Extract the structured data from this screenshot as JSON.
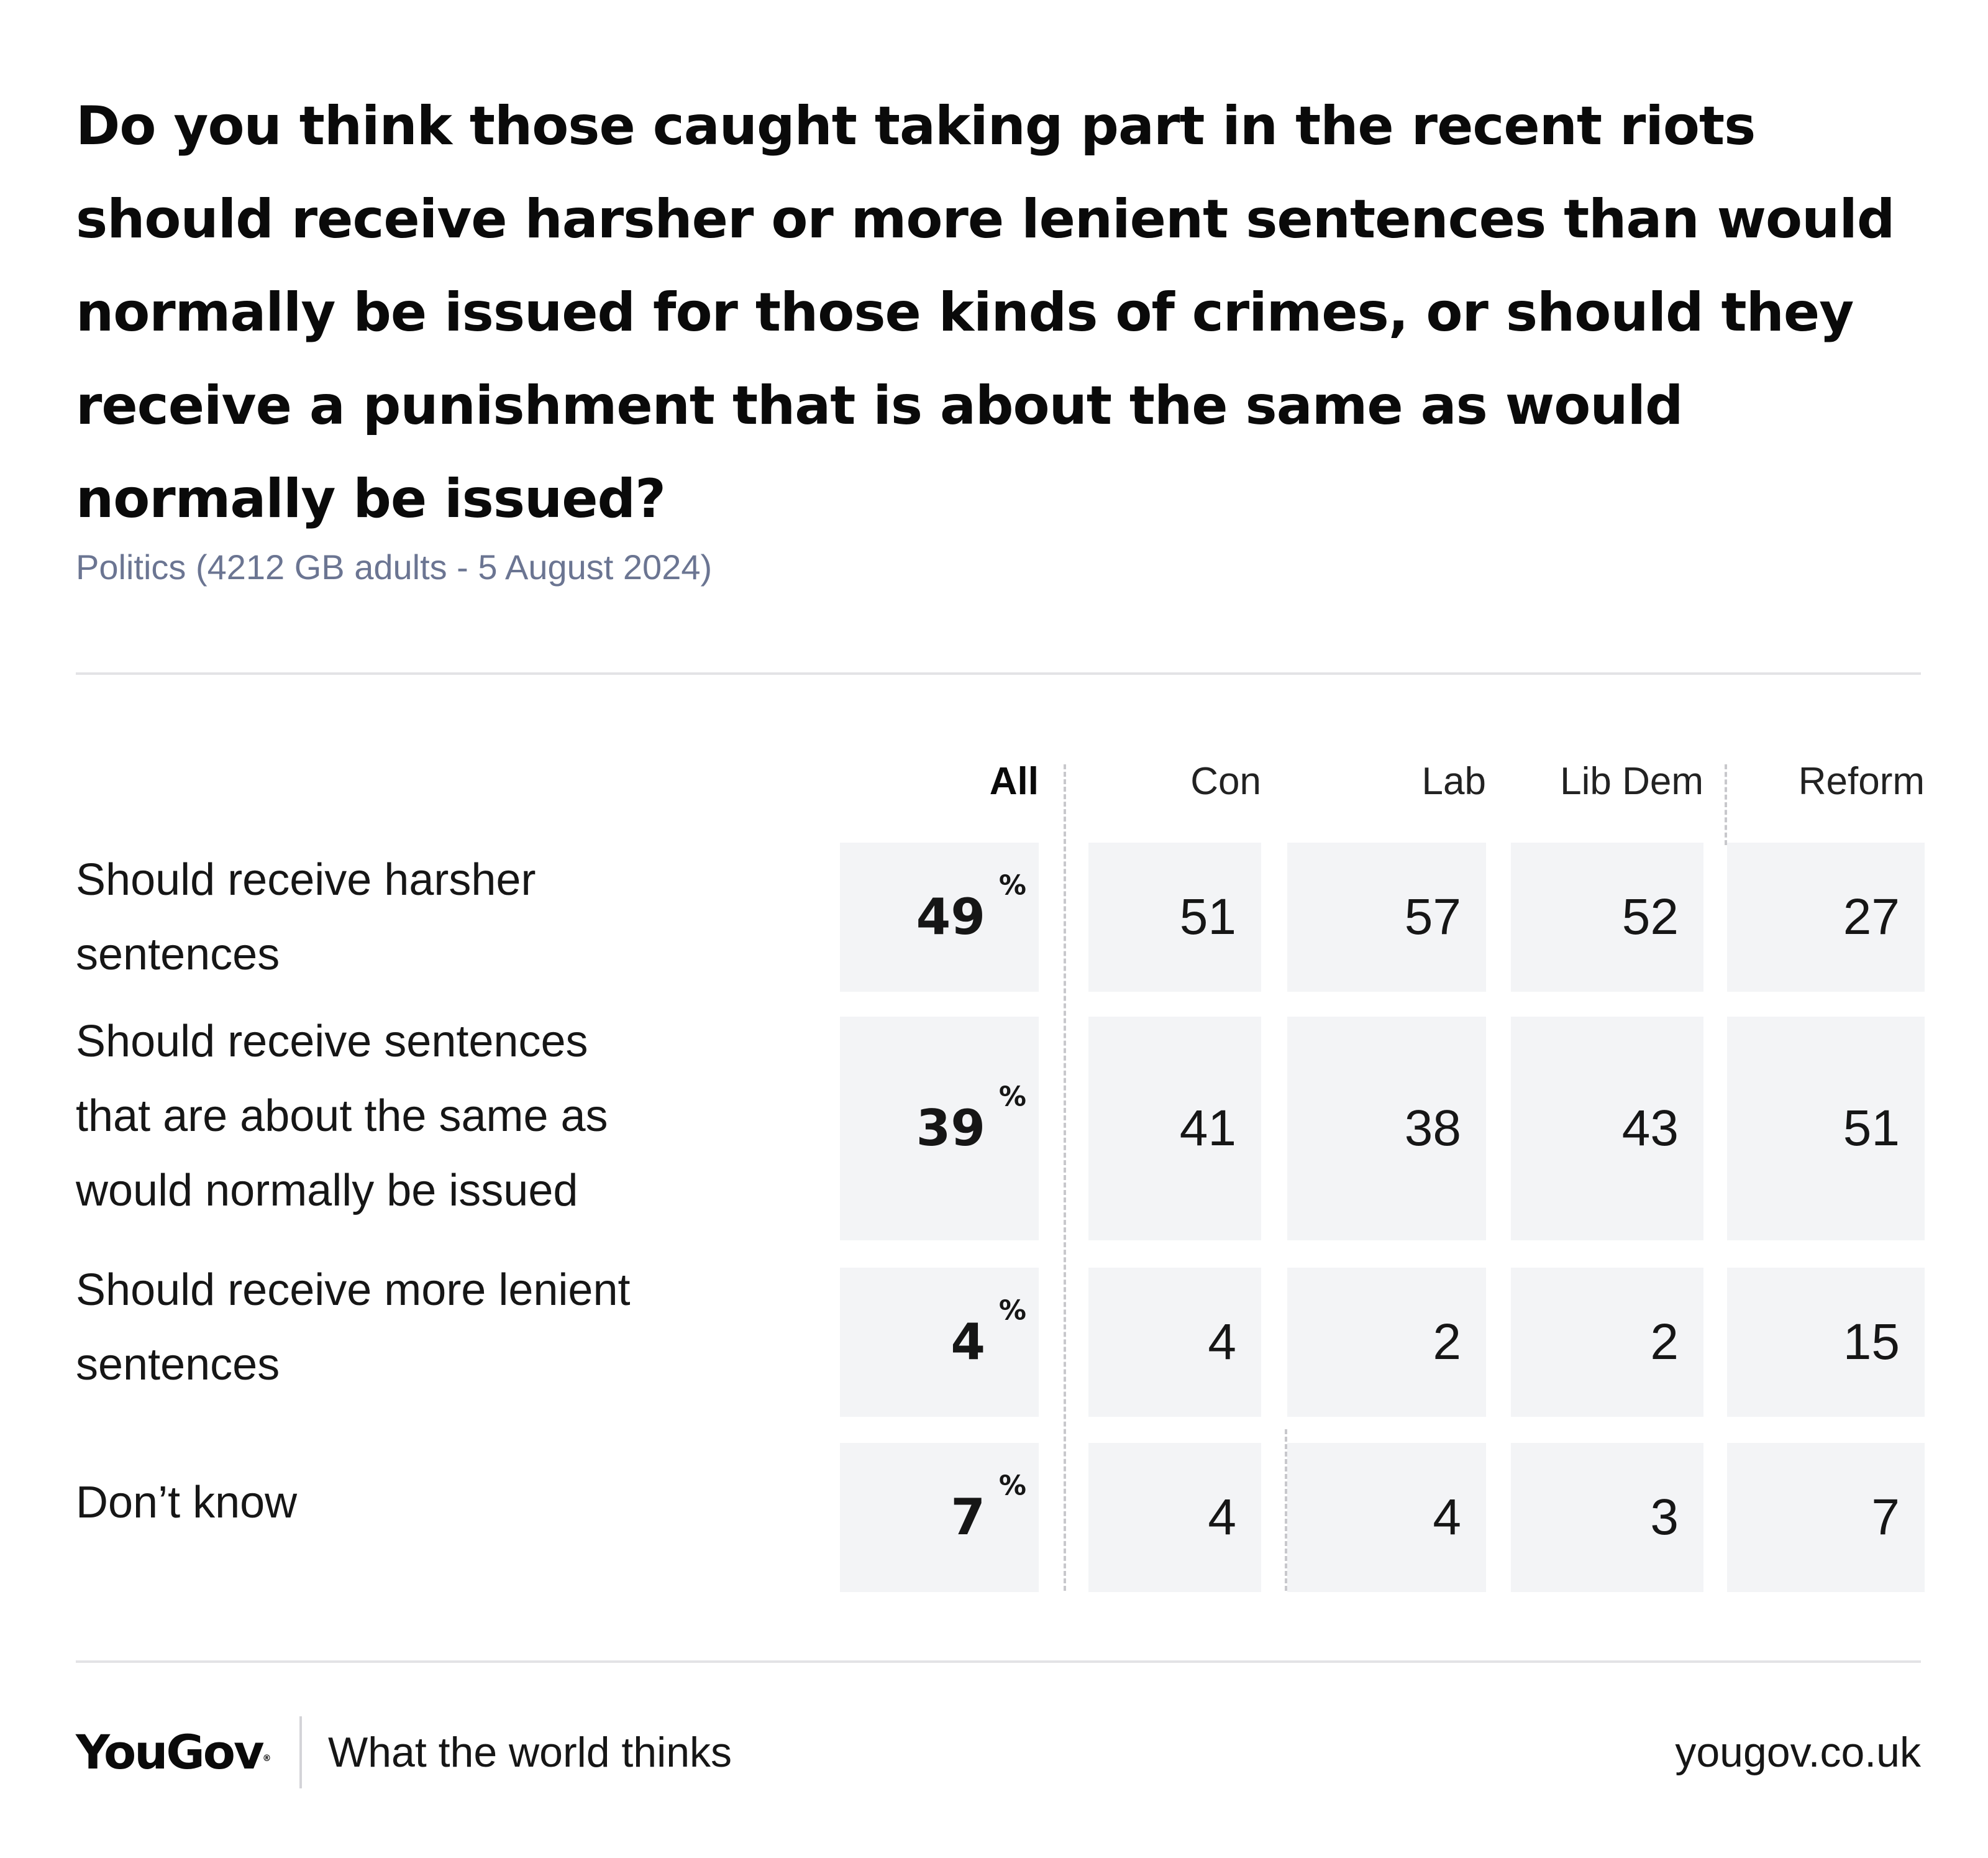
{
  "title": "Do you think those caught taking part in the recent riots should receive harsher or more lenient sentences than would normally be issued for those kinds of crimes, or should they receive a punishment that is about the same as would normally be issued?",
  "subtitle": "Politics (4212 GB adults - 5 August 2024)",
  "footer": {
    "logo": "YouGov",
    "tagline": "What the world thinks",
    "url": "yougov.co.uk"
  },
  "colors": {
    "cell_background": "#f3f4f6",
    "subtitle": "#6b7592",
    "rule": "#e3e3e6"
  },
  "chart_data": {
    "type": "table",
    "unit": "%",
    "columns": [
      "All",
      "Con",
      "Lab",
      "Lib Dem",
      "Reform"
    ],
    "rows": [
      {
        "label": "Should receive harsher sentences",
        "values": [
          49,
          51,
          57,
          52,
          27
        ]
      },
      {
        "label": "Should receive sentences that are about the same as would normally be issued",
        "values": [
          39,
          41,
          38,
          43,
          51
        ]
      },
      {
        "label": "Should receive more lenient sentences",
        "values": [
          4,
          4,
          2,
          2,
          15
        ]
      },
      {
        "label": "Don’t know",
        "values": [
          7,
          4,
          4,
          3,
          7
        ]
      }
    ]
  }
}
